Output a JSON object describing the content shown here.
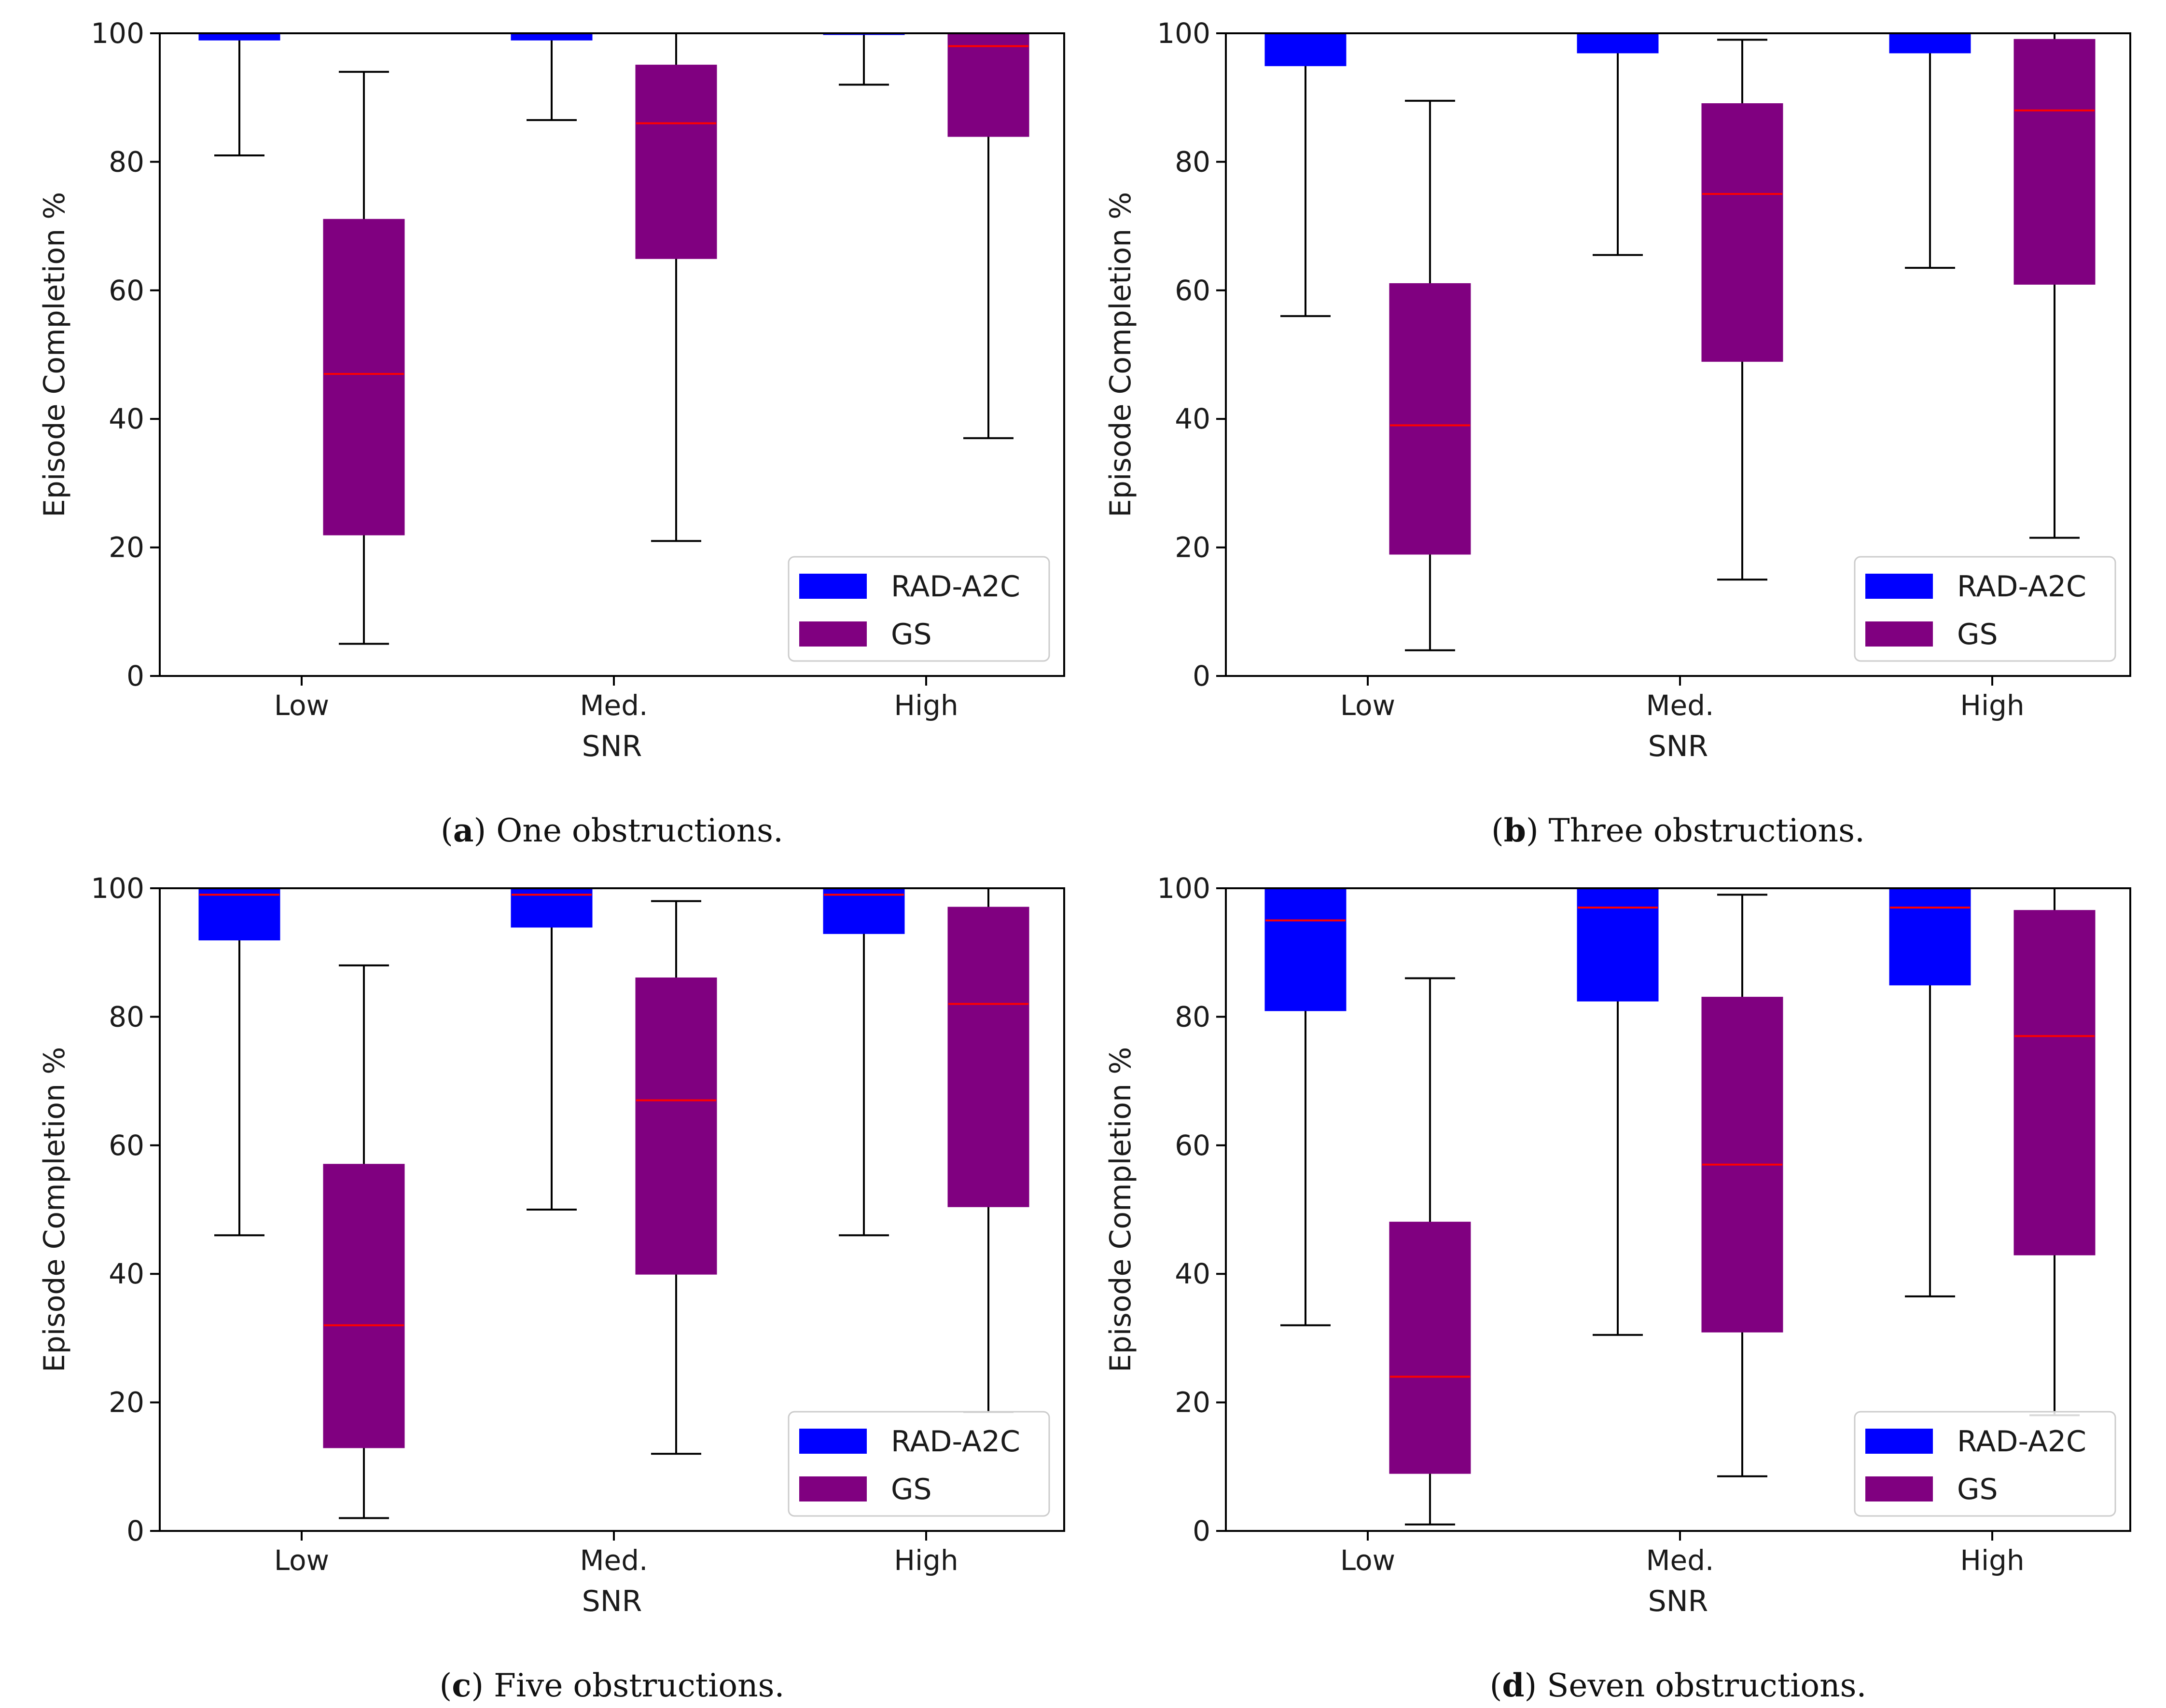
{
  "figure": {
    "colors": {
      "rad": "#0000ff",
      "gs": "#800080",
      "median": "#ff0000",
      "whisker": "#000000",
      "axis": "#000000"
    }
  },
  "chart_data": [
    {
      "type": "boxplot",
      "id": "a",
      "caption": {
        "letter": "a",
        "text": "One obstructions."
      },
      "xlabel": "SNR",
      "ylabel": "Episode Completion %",
      "ylim": [
        0,
        100
      ],
      "yticks": [
        "0",
        "20",
        "40",
        "60",
        "80",
        "100"
      ],
      "categories": [
        "Low",
        "Med.",
        "High"
      ],
      "legend": {
        "position": "lower-right",
        "entries": [
          "RAD-A2C",
          "GS"
        ]
      },
      "series": [
        {
          "name": "RAD-A2C",
          "boxes": [
            {
              "whislo": 81,
              "q1": 99,
              "med": 100,
              "q3": 100,
              "whishi": 100
            },
            {
              "whislo": 86.5,
              "q1": 99,
              "med": 100,
              "q3": 100,
              "whishi": 100
            },
            {
              "whislo": 92,
              "q1": 100,
              "med": 100,
              "q3": 100,
              "whishi": 100
            }
          ]
        },
        {
          "name": "GS",
          "boxes": [
            {
              "whislo": 5,
              "q1": 22,
              "med": 47,
              "q3": 71,
              "whishi": 94
            },
            {
              "whislo": 21,
              "q1": 65,
              "med": 86,
              "q3": 95,
              "whishi": 100
            },
            {
              "whislo": 37,
              "q1": 84,
              "med": 98,
              "q3": 100,
              "whishi": 100
            }
          ]
        }
      ]
    },
    {
      "type": "boxplot",
      "id": "b",
      "caption": {
        "letter": "b",
        "text": "Three obstructions."
      },
      "xlabel": "SNR",
      "ylabel": "Episode Completion %",
      "ylim": [
        0,
        100
      ],
      "yticks": [
        "0",
        "20",
        "40",
        "60",
        "80",
        "100"
      ],
      "categories": [
        "Low",
        "Med.",
        "High"
      ],
      "legend": {
        "position": "lower-right",
        "entries": [
          "RAD-A2C",
          "GS"
        ]
      },
      "series": [
        {
          "name": "RAD-A2C",
          "boxes": [
            {
              "whislo": 56,
              "q1": 95,
              "med": 100,
              "q3": 100,
              "whishi": 100
            },
            {
              "whislo": 65.5,
              "q1": 97,
              "med": 100,
              "q3": 100,
              "whishi": 100
            },
            {
              "whislo": 63.5,
              "q1": 97,
              "med": 100,
              "q3": 100,
              "whishi": 100
            }
          ]
        },
        {
          "name": "GS",
          "boxes": [
            {
              "whislo": 4,
              "q1": 19,
              "med": 39,
              "q3": 61,
              "whishi": 89.5
            },
            {
              "whislo": 15,
              "q1": 49,
              "med": 75,
              "q3": 89,
              "whishi": 99
            },
            {
              "whislo": 21.5,
              "q1": 61,
              "med": 88,
              "q3": 99,
              "whishi": 100
            }
          ]
        }
      ]
    },
    {
      "type": "boxplot",
      "id": "c",
      "caption": {
        "letter": "c",
        "text": "Five obstructions."
      },
      "xlabel": "SNR",
      "ylabel": "Episode Completion %",
      "ylim": [
        0,
        100
      ],
      "yticks": [
        "0",
        "20",
        "40",
        "60",
        "80",
        "100"
      ],
      "categories": [
        "Low",
        "Med.",
        "High"
      ],
      "legend": {
        "position": "lower-right",
        "entries": [
          "RAD-A2C",
          "GS"
        ]
      },
      "series": [
        {
          "name": "RAD-A2C",
          "boxes": [
            {
              "whislo": 46,
              "q1": 92,
              "med": 99,
              "q3": 100,
              "whishi": 100
            },
            {
              "whislo": 50,
              "q1": 94,
              "med": 99,
              "q3": 100,
              "whishi": 100
            },
            {
              "whislo": 46,
              "q1": 93,
              "med": 99,
              "q3": 100,
              "whishi": 100
            }
          ]
        },
        {
          "name": "GS",
          "boxes": [
            {
              "whislo": 2,
              "q1": 13,
              "med": 32,
              "q3": 57,
              "whishi": 88
            },
            {
              "whislo": 12,
              "q1": 40,
              "med": 67,
              "q3": 86,
              "whishi": 98
            },
            {
              "whislo": 18.5,
              "q1": 50.5,
              "med": 82,
              "q3": 97,
              "whishi": 100
            }
          ]
        }
      ]
    },
    {
      "type": "boxplot",
      "id": "d",
      "caption": {
        "letter": "d",
        "text": "Seven obstructions."
      },
      "xlabel": "SNR",
      "ylabel": "Episode Completion %",
      "ylim": [
        0,
        100
      ],
      "yticks": [
        "0",
        "20",
        "40",
        "60",
        "80",
        "100"
      ],
      "categories": [
        "Low",
        "Med.",
        "High"
      ],
      "legend": {
        "position": "lower-right",
        "entries": [
          "RAD-A2C",
          "GS"
        ]
      },
      "series": [
        {
          "name": "RAD-A2C",
          "boxes": [
            {
              "whislo": 32,
              "q1": 81,
              "med": 95,
              "q3": 100,
              "whishi": 100
            },
            {
              "whislo": 30.5,
              "q1": 82.5,
              "med": 97,
              "q3": 100,
              "whishi": 100
            },
            {
              "whislo": 36.5,
              "q1": 85,
              "med": 97,
              "q3": 100,
              "whishi": 100
            }
          ]
        },
        {
          "name": "GS",
          "boxes": [
            {
              "whislo": 1,
              "q1": 9,
              "med": 24,
              "q3": 48,
              "whishi": 86
            },
            {
              "whislo": 8.5,
              "q1": 31,
              "med": 57,
              "q3": 83,
              "whishi": 99
            },
            {
              "whislo": 18,
              "q1": 43,
              "med": 77,
              "q3": 96.5,
              "whishi": 100
            }
          ]
        }
      ]
    }
  ]
}
